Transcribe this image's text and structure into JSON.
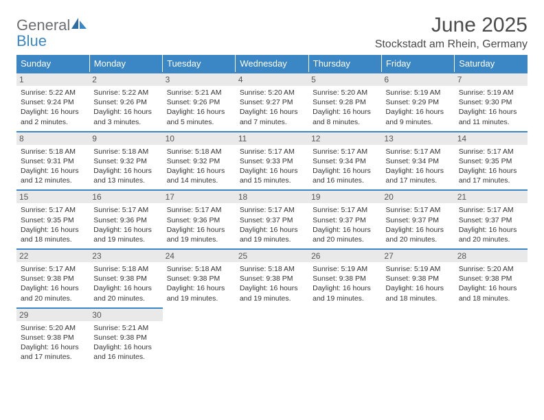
{
  "brand": {
    "part1": "General",
    "part2": "Blue"
  },
  "title": "June 2025",
  "location": "Stockstadt am Rhein, Germany",
  "colors": {
    "header_bg": "#3b86c4",
    "header_text": "#ffffff",
    "daynum_bg": "#e9e9e9",
    "row_border": "#3b86c4",
    "text": "#333333",
    "title_text": "#4a4a4a"
  },
  "day_labels": [
    "Sunday",
    "Monday",
    "Tuesday",
    "Wednesday",
    "Thursday",
    "Friday",
    "Saturday"
  ],
  "weeks": [
    [
      {
        "n": "1",
        "sunrise": "Sunrise: 5:22 AM",
        "sunset": "Sunset: 9:24 PM",
        "daylight": "Daylight: 16 hours and 2 minutes."
      },
      {
        "n": "2",
        "sunrise": "Sunrise: 5:22 AM",
        "sunset": "Sunset: 9:26 PM",
        "daylight": "Daylight: 16 hours and 3 minutes."
      },
      {
        "n": "3",
        "sunrise": "Sunrise: 5:21 AM",
        "sunset": "Sunset: 9:26 PM",
        "daylight": "Daylight: 16 hours and 5 minutes."
      },
      {
        "n": "4",
        "sunrise": "Sunrise: 5:20 AM",
        "sunset": "Sunset: 9:27 PM",
        "daylight": "Daylight: 16 hours and 7 minutes."
      },
      {
        "n": "5",
        "sunrise": "Sunrise: 5:20 AM",
        "sunset": "Sunset: 9:28 PM",
        "daylight": "Daylight: 16 hours and 8 minutes."
      },
      {
        "n": "6",
        "sunrise": "Sunrise: 5:19 AM",
        "sunset": "Sunset: 9:29 PM",
        "daylight": "Daylight: 16 hours and 9 minutes."
      },
      {
        "n": "7",
        "sunrise": "Sunrise: 5:19 AM",
        "sunset": "Sunset: 9:30 PM",
        "daylight": "Daylight: 16 hours and 11 minutes."
      }
    ],
    [
      {
        "n": "8",
        "sunrise": "Sunrise: 5:18 AM",
        "sunset": "Sunset: 9:31 PM",
        "daylight": "Daylight: 16 hours and 12 minutes."
      },
      {
        "n": "9",
        "sunrise": "Sunrise: 5:18 AM",
        "sunset": "Sunset: 9:32 PM",
        "daylight": "Daylight: 16 hours and 13 minutes."
      },
      {
        "n": "10",
        "sunrise": "Sunrise: 5:18 AM",
        "sunset": "Sunset: 9:32 PM",
        "daylight": "Daylight: 16 hours and 14 minutes."
      },
      {
        "n": "11",
        "sunrise": "Sunrise: 5:17 AM",
        "sunset": "Sunset: 9:33 PM",
        "daylight": "Daylight: 16 hours and 15 minutes."
      },
      {
        "n": "12",
        "sunrise": "Sunrise: 5:17 AM",
        "sunset": "Sunset: 9:34 PM",
        "daylight": "Daylight: 16 hours and 16 minutes."
      },
      {
        "n": "13",
        "sunrise": "Sunrise: 5:17 AM",
        "sunset": "Sunset: 9:34 PM",
        "daylight": "Daylight: 16 hours and 17 minutes."
      },
      {
        "n": "14",
        "sunrise": "Sunrise: 5:17 AM",
        "sunset": "Sunset: 9:35 PM",
        "daylight": "Daylight: 16 hours and 17 minutes."
      }
    ],
    [
      {
        "n": "15",
        "sunrise": "Sunrise: 5:17 AM",
        "sunset": "Sunset: 9:35 PM",
        "daylight": "Daylight: 16 hours and 18 minutes."
      },
      {
        "n": "16",
        "sunrise": "Sunrise: 5:17 AM",
        "sunset": "Sunset: 9:36 PM",
        "daylight": "Daylight: 16 hours and 19 minutes."
      },
      {
        "n": "17",
        "sunrise": "Sunrise: 5:17 AM",
        "sunset": "Sunset: 9:36 PM",
        "daylight": "Daylight: 16 hours and 19 minutes."
      },
      {
        "n": "18",
        "sunrise": "Sunrise: 5:17 AM",
        "sunset": "Sunset: 9:37 PM",
        "daylight": "Daylight: 16 hours and 19 minutes."
      },
      {
        "n": "19",
        "sunrise": "Sunrise: 5:17 AM",
        "sunset": "Sunset: 9:37 PM",
        "daylight": "Daylight: 16 hours and 20 minutes."
      },
      {
        "n": "20",
        "sunrise": "Sunrise: 5:17 AM",
        "sunset": "Sunset: 9:37 PM",
        "daylight": "Daylight: 16 hours and 20 minutes."
      },
      {
        "n": "21",
        "sunrise": "Sunrise: 5:17 AM",
        "sunset": "Sunset: 9:37 PM",
        "daylight": "Daylight: 16 hours and 20 minutes."
      }
    ],
    [
      {
        "n": "22",
        "sunrise": "Sunrise: 5:17 AM",
        "sunset": "Sunset: 9:38 PM",
        "daylight": "Daylight: 16 hours and 20 minutes."
      },
      {
        "n": "23",
        "sunrise": "Sunrise: 5:18 AM",
        "sunset": "Sunset: 9:38 PM",
        "daylight": "Daylight: 16 hours and 20 minutes."
      },
      {
        "n": "24",
        "sunrise": "Sunrise: 5:18 AM",
        "sunset": "Sunset: 9:38 PM",
        "daylight": "Daylight: 16 hours and 19 minutes."
      },
      {
        "n": "25",
        "sunrise": "Sunrise: 5:18 AM",
        "sunset": "Sunset: 9:38 PM",
        "daylight": "Daylight: 16 hours and 19 minutes."
      },
      {
        "n": "26",
        "sunrise": "Sunrise: 5:19 AM",
        "sunset": "Sunset: 9:38 PM",
        "daylight": "Daylight: 16 hours and 19 minutes."
      },
      {
        "n": "27",
        "sunrise": "Sunrise: 5:19 AM",
        "sunset": "Sunset: 9:38 PM",
        "daylight": "Daylight: 16 hours and 18 minutes."
      },
      {
        "n": "28",
        "sunrise": "Sunrise: 5:20 AM",
        "sunset": "Sunset: 9:38 PM",
        "daylight": "Daylight: 16 hours and 18 minutes."
      }
    ],
    [
      {
        "n": "29",
        "sunrise": "Sunrise: 5:20 AM",
        "sunset": "Sunset: 9:38 PM",
        "daylight": "Daylight: 16 hours and 17 minutes."
      },
      {
        "n": "30",
        "sunrise": "Sunrise: 5:21 AM",
        "sunset": "Sunset: 9:38 PM",
        "daylight": "Daylight: 16 hours and 16 minutes."
      },
      null,
      null,
      null,
      null,
      null
    ]
  ]
}
